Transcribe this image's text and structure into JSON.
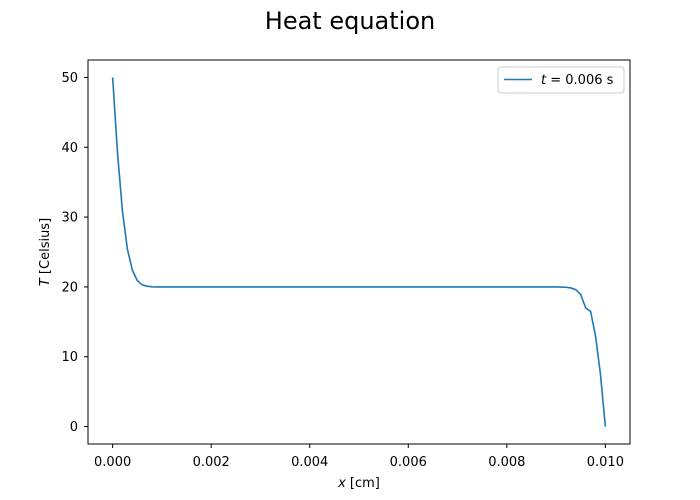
{
  "chart_data": {
    "type": "line",
    "title": "Heat equation",
    "xlabel_var": "x",
    "xlabel_unit": " [cm]",
    "ylabel_var": "T",
    "ylabel_unit": " [Celsius]",
    "xlim": [
      -0.0005,
      0.0105
    ],
    "ylim": [
      -2.5,
      52.5
    ],
    "xticks": [
      0.0,
      0.002,
      0.004,
      0.006,
      0.008,
      0.01
    ],
    "xtick_labels": [
      "0.000",
      "0.002",
      "0.004",
      "0.006",
      "0.008",
      "0.010"
    ],
    "yticks": [
      0,
      10,
      20,
      30,
      40,
      50
    ],
    "ytick_labels": [
      "0",
      "10",
      "20",
      "30",
      "40",
      "50"
    ],
    "legend_position": "top-right",
    "grid": false,
    "series": [
      {
        "name_var": "t",
        "name_rest": " = 0.006 s",
        "color": "#1f77b4",
        "x": [
          0.0,
          0.0001,
          0.0002,
          0.0003,
          0.0004,
          0.0005,
          0.0006,
          0.0007,
          0.0008,
          0.0009,
          0.001,
          0.002,
          0.003,
          0.004,
          0.005,
          0.006,
          0.007,
          0.008,
          0.009,
          0.0092,
          0.0093,
          0.0094,
          0.0095,
          0.0096,
          0.0097,
          0.0098,
          0.0099,
          0.01
        ],
        "y": [
          50.0,
          39.1,
          30.8,
          25.4,
          22.4,
          20.9,
          20.3,
          20.1,
          20.02,
          20.0,
          20.0,
          20.0,
          20.0,
          20.0,
          20.0,
          20.0,
          20.0,
          20.0,
          20.0,
          19.95,
          19.85,
          19.6,
          18.9,
          17.0,
          16.5,
          13.0,
          7.5,
          0.0
        ]
      }
    ]
  }
}
